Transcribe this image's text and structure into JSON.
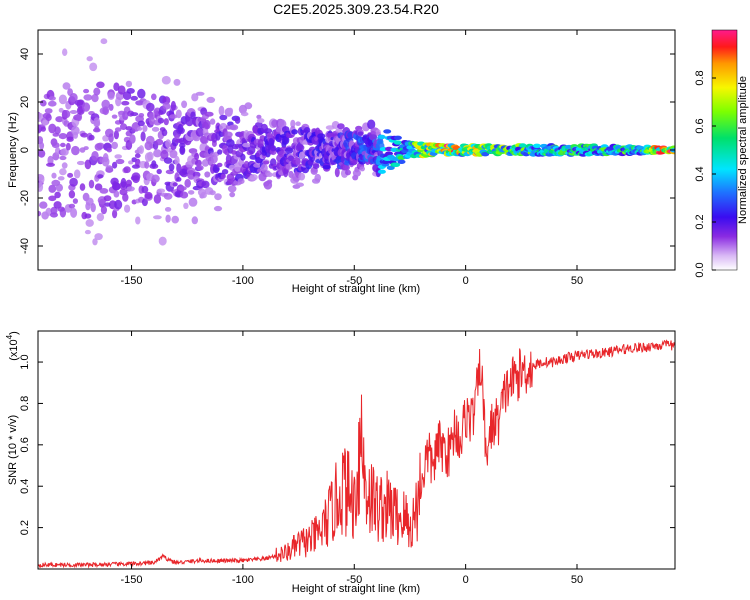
{
  "figure": {
    "title": "C2E5.2025.309.23.54.R20"
  },
  "chart_data": [
    {
      "type": "heatmap",
      "title": "C2E5.2025.309.23.54.R20",
      "xlabel": "Height of straight line (km)",
      "ylabel": "Frequency (Hz)",
      "xlim": [
        -192,
        94
      ],
      "ylim": [
        -50,
        50
      ],
      "xticks": [
        -150,
        -100,
        -50,
        0,
        50
      ],
      "yticks": [
        -40,
        -20,
        0,
        20,
        40
      ],
      "colorbar": {
        "label": "Normalized spectral amplitude",
        "range": [
          0.0,
          1.0
        ],
        "ticks": [
          0.0,
          0.2,
          0.4,
          0.6,
          0.8
        ],
        "tick_labels": [
          "0.0",
          "0.2",
          "0.4",
          "0.6",
          "0.8"
        ],
        "colormap": "rainbow (white, violet, blue, cyan, green, yellow, orange, red, magenta)"
      },
      "description_points": [
        {
          "x": -190,
          "spread_hz": 50,
          "amplitude": 0.12
        },
        {
          "x": -150,
          "spread_hz": 50,
          "amplitude": 0.14
        },
        {
          "x": -120,
          "spread_hz": 30,
          "amplitude": 0.15
        },
        {
          "x": -90,
          "spread_hz": 20,
          "amplitude": 0.18
        },
        {
          "x": -60,
          "spread_hz": 14,
          "amplitude": 0.22
        },
        {
          "x": -40,
          "spread_hz": 11,
          "amplitude": 0.3
        },
        {
          "x": -25,
          "spread_hz": 3,
          "amplitude": 0.6
        },
        {
          "x": -10,
          "spread_hz": 2,
          "amplitude": 0.9
        },
        {
          "x": 0,
          "spread_hz": 2,
          "amplitude": 0.75
        },
        {
          "x": 20,
          "spread_hz": 2,
          "amplitude": 0.6
        },
        {
          "x": 50,
          "spread_hz": 2,
          "amplitude": 0.55
        },
        {
          "x": 80,
          "spread_hz": 1.5,
          "amplitude": 0.55
        },
        {
          "x": 90,
          "spread_hz": 1,
          "amplitude": 0.95
        }
      ]
    },
    {
      "type": "line",
      "xlabel": "Height of straight line (km)",
      "ylabel": "SNR (10 * v/v)",
      "multiplier_label": "(x10",
      "multiplier_exponent": "4",
      "multiplier_close": ")",
      "xlim": [
        -192,
        94
      ],
      "ylim": [
        0,
        1.15
      ],
      "xticks": [
        -150,
        -100,
        -50,
        0,
        50
      ],
      "yticks": [
        0.2,
        0.4,
        0.6,
        0.8,
        1.0
      ],
      "line_color": "#e8262a",
      "series": [
        {
          "name": "SNR",
          "x": [
            -192,
            -170,
            -150,
            -140,
            -136,
            -130,
            -120,
            -110,
            -100,
            -90,
            -80,
            -75,
            -70,
            -65,
            -60,
            -55,
            -50,
            -47,
            -45,
            -40,
            -35,
            -30,
            -27,
            -25,
            -22,
            -20,
            -17,
            -15,
            -12,
            -10,
            -7,
            -5,
            -2,
            0,
            3,
            5,
            7,
            9,
            12,
            15,
            18,
            20,
            25,
            30,
            35,
            40,
            45,
            50,
            55,
            60,
            65,
            70,
            75,
            80,
            85,
            90,
            94
          ],
          "values": [
            0.02,
            0.02,
            0.025,
            0.03,
            0.06,
            0.03,
            0.04,
            0.04,
            0.04,
            0.05,
            0.08,
            0.12,
            0.14,
            0.18,
            0.28,
            0.4,
            0.32,
            0.66,
            0.4,
            0.3,
            0.3,
            0.25,
            0.25,
            0.18,
            0.3,
            0.42,
            0.56,
            0.5,
            0.6,
            0.58,
            0.56,
            0.68,
            0.62,
            0.75,
            0.72,
            0.85,
            1.0,
            0.55,
            0.7,
            0.72,
            0.86,
            0.9,
            0.95,
            0.98,
            1.0,
            1.0,
            1.02,
            1.03,
            1.04,
            1.04,
            1.05,
            1.06,
            1.07,
            1.07,
            1.08,
            1.08,
            1.08
          ]
        }
      ]
    }
  ]
}
